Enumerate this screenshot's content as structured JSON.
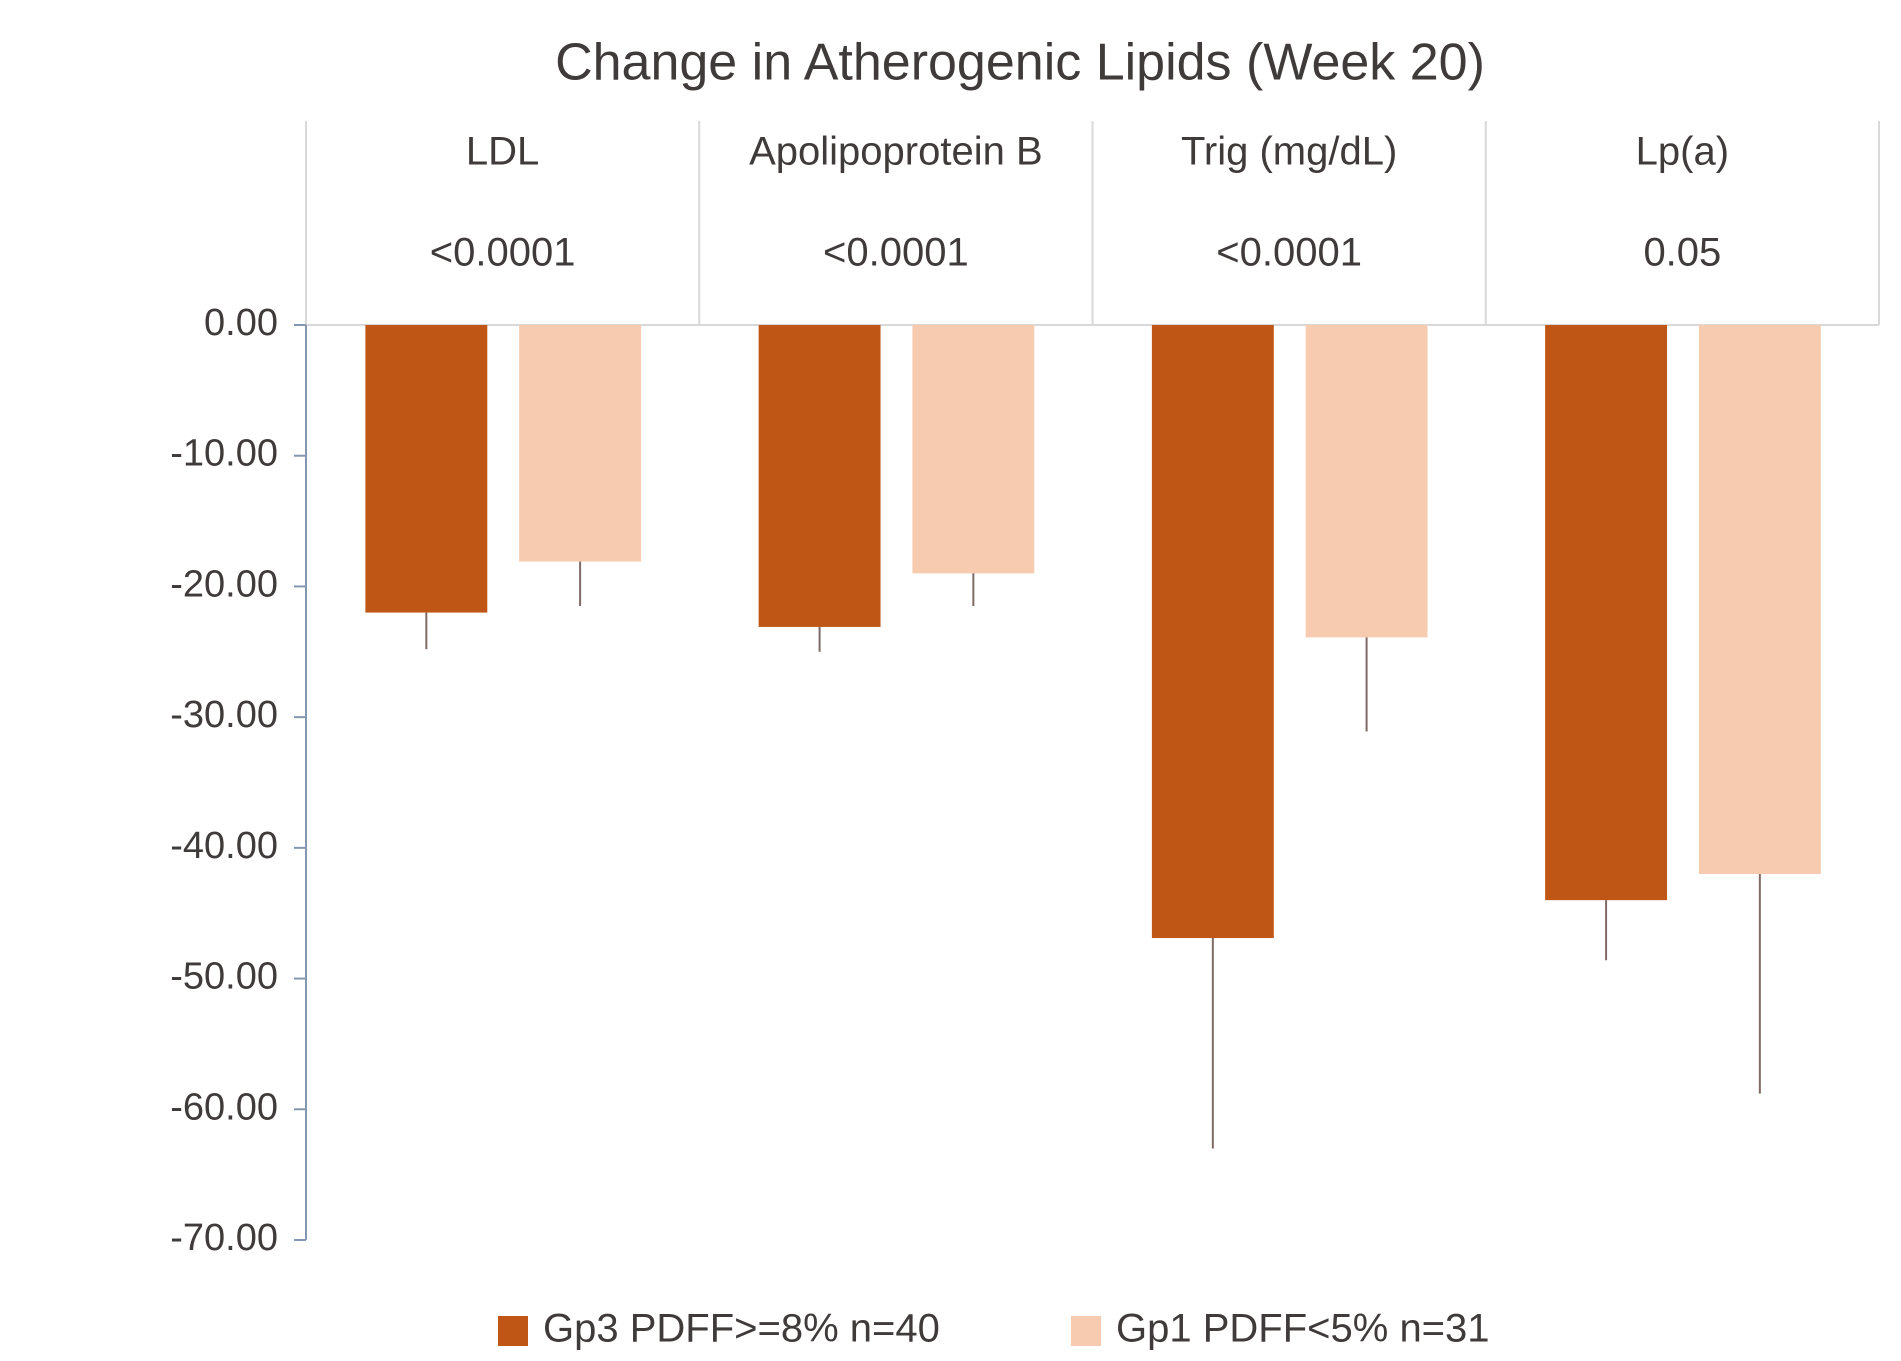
{
  "chart_data": {
    "type": "bar",
    "title": "Change in Atherogenic Lipids (Week 20)",
    "categories": [
      "LDL",
      "Apolipoprotein B",
      "Trig (mg/dL)",
      "Lp(a)"
    ],
    "p_values": [
      "<0.0001",
      "<0.0001",
      "<0.0001",
      "0.05"
    ],
    "series": [
      {
        "name": "Gp3 PDFF>=8% n=40",
        "color": "#c05615",
        "values": [
          -22.0,
          -23.1,
          -46.9,
          -44.0
        ],
        "errors": [
          2.8,
          1.9,
          16.1,
          4.6
        ]
      },
      {
        "name": "Gp1 PDFF<5% n=31",
        "color": "#f6cbb0",
        "values": [
          -18.1,
          -19.0,
          -23.9,
          -42.0
        ],
        "errors": [
          3.4,
          2.5,
          7.2,
          16.8
        ]
      }
    ],
    "ylim": [
      -70,
      0
    ],
    "yticks": [
      {
        "value": 0,
        "label": "0.00"
      },
      {
        "value": -10,
        "label": "-10.00"
      },
      {
        "value": -20,
        "label": "-20.00"
      },
      {
        "value": -30,
        "label": "-30.00"
      },
      {
        "value": -40,
        "label": "-40.00"
      },
      {
        "value": -50,
        "label": "-50.00"
      },
      {
        "value": -60,
        "label": "-60.00"
      },
      {
        "value": -70,
        "label": "-70.00"
      }
    ],
    "error_color": "#7f6a66",
    "axis_color": "#8497b0",
    "legend": "bottom"
  }
}
